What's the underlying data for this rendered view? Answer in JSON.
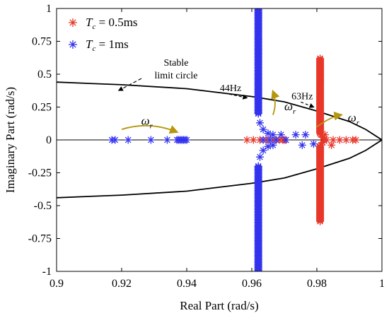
{
  "chart_data": {
    "type": "scatter",
    "xlabel": "Real Part (rad/s)",
    "ylabel": "Imaginary  Part (rad/s)",
    "xlim": [
      0.9,
      1.0
    ],
    "ylim": [
      -1.0,
      1.0
    ],
    "xticks": [
      "0.9",
      "0.92",
      "0.94",
      "0.96",
      "0.98",
      "1"
    ],
    "yticks": [
      "1",
      "0.75",
      "0.5",
      "0.25",
      "0",
      "-0.25",
      "-0.5",
      "-0.75",
      "-1"
    ],
    "grid": false,
    "legend_position": "top-left",
    "legend": [
      {
        "symbol": "T",
        "subscript": "c",
        "text": " = 0.5ms",
        "color": "#e8372a"
      },
      {
        "symbol": "T",
        "subscript": "c",
        "text": " = 1ms",
        "color": "#3333ee"
      }
    ],
    "stable_limit_circle": {
      "label_line1": "Stable",
      "label_line2": "limit circle",
      "points": [
        [
          0.9,
          0.44
        ],
        [
          0.92,
          0.42
        ],
        [
          0.94,
          0.39
        ],
        [
          0.96,
          0.33
        ],
        [
          0.97,
          0.29
        ],
        [
          0.98,
          0.22
        ],
        [
          0.99,
          0.14
        ],
        [
          0.995,
          0.08
        ],
        [
          1.0,
          0.0
        ],
        [
          0.995,
          -0.08
        ],
        [
          0.99,
          -0.14
        ],
        [
          0.98,
          -0.22
        ],
        [
          0.97,
          -0.29
        ],
        [
          0.96,
          -0.33
        ],
        [
          0.94,
          -0.39
        ],
        [
          0.92,
          -0.42
        ],
        [
          0.9,
          -0.44
        ]
      ]
    },
    "series": [
      {
        "name": "T_c = 0.5ms",
        "color": "#e8372a",
        "segments": [
          {
            "kind": "points",
            "x": [
              0.9585,
              0.9605,
              0.9625,
              0.9645,
              0.9665,
              0.9675,
              0.9685,
              0.9695,
              0.97,
              0.9705,
              0.983,
              0.985,
              0.987,
              0.989,
              0.991,
              0.992,
              0.9825,
              0.9845
            ],
            "y": [
              0,
              0,
              0,
              0,
              0,
              0,
              0,
              0,
              0,
              0,
              0,
              0,
              0,
              0,
              0,
              0,
              0.04,
              -0.04
            ]
          },
          {
            "kind": "column",
            "x": 0.981,
            "y_from": 0.05,
            "y_to": 0.62,
            "count": 90
          },
          {
            "kind": "column",
            "x": 0.981,
            "y_from": -0.05,
            "y_to": -0.62,
            "count": 90
          },
          {
            "kind": "curve",
            "x": [
              0.9812,
              0.9818,
              0.9822
            ],
            "y": [
              0.04,
              0.02,
              0.005
            ]
          },
          {
            "kind": "curve",
            "x": [
              0.9812,
              0.9818,
              0.9822
            ],
            "y": [
              -0.04,
              -0.02,
              -0.005
            ]
          }
        ]
      },
      {
        "name": "T_c = 1ms",
        "color": "#3333ee",
        "segments": [
          {
            "kind": "points",
            "x": [
              0.917,
              0.918,
              0.922,
              0.929,
              0.934,
              0.937,
              0.9375,
              0.938,
              0.9385,
              0.939,
              0.9395,
              0.94,
              0.9635,
              0.9655,
              0.9675,
              0.9705,
              0.9735,
              0.9765,
              0.979
            ],
            "y": [
              0,
              0,
              0,
              0,
              0,
              0,
              0,
              0,
              0,
              0,
              0,
              0,
              0,
              0,
              0,
              0,
              0.04,
              0.04,
              -0.03
            ]
          },
          {
            "kind": "column",
            "x": 0.962,
            "y_from": 0.2,
            "y_to": 1.0,
            "count": 110
          },
          {
            "kind": "column",
            "x": 0.962,
            "y_from": -0.2,
            "y_to": -1.0,
            "count": 110
          },
          {
            "kind": "curve",
            "x": [
              0.962,
              0.9625,
              0.9635,
              0.965,
              0.9665
            ],
            "y": [
              0.2,
              0.13,
              0.08,
              0.05,
              0.04
            ]
          },
          {
            "kind": "curve",
            "x": [
              0.962,
              0.9625,
              0.9635,
              0.965,
              0.9665
            ],
            "y": [
              -0.2,
              -0.13,
              -0.08,
              -0.05,
              -0.04
            ]
          },
          {
            "kind": "points",
            "x": [
              0.969,
              0.9755
            ],
            "y": [
              0.04,
              -0.04
            ]
          }
        ]
      }
    ],
    "annotations": [
      {
        "text": "44Hz",
        "x": 0.9535,
        "y": 0.37,
        "arrow_to": [
          0.9585,
          0.32
        ]
      },
      {
        "text": "63Hz",
        "x": 0.9755,
        "y": 0.31,
        "arrow_to": [
          0.979,
          0.25
        ]
      }
    ],
    "omega_arrows": [
      {
        "symbol": "ω",
        "subscript": "r",
        "from": [
          0.92,
          0.08
        ],
        "to": [
          0.937,
          0.06
        ],
        "label_at": [
          0.926,
          0.115
        ]
      },
      {
        "symbol": "ω",
        "subscript": "r",
        "from": [
          0.9665,
          0.19
        ],
        "to": [
          0.9665,
          0.37
        ],
        "label_at": [
          0.97,
          0.225
        ]
      },
      {
        "symbol": "ω",
        "subscript": "r",
        "from": [
          0.98,
          0.1
        ],
        "to": [
          0.9875,
          0.19
        ],
        "label_at": [
          0.9895,
          0.14
        ]
      }
    ],
    "arrow_color": "#b5960c"
  }
}
